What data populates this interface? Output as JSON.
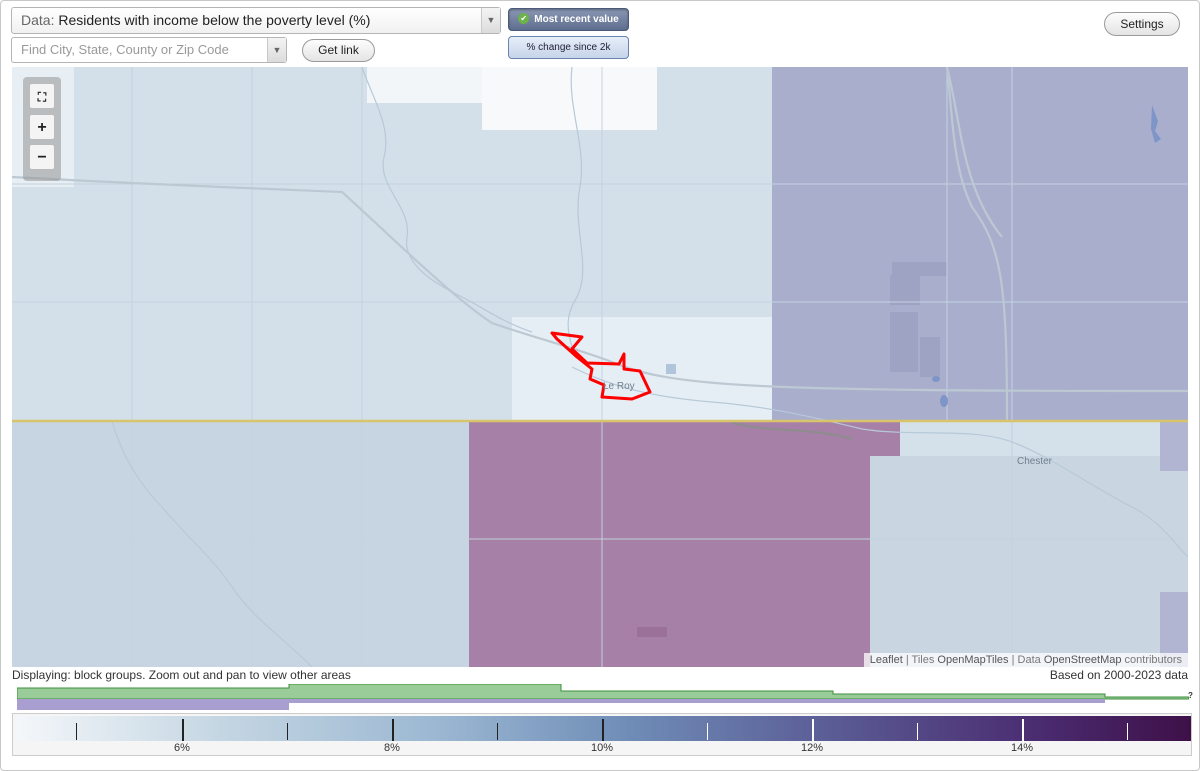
{
  "data_selector": {
    "prefix": "Data:",
    "value": "Residents with income below the poverty level (%)",
    "arrow": "▼"
  },
  "find": {
    "placeholder": "Find City, State, County or Zip Code",
    "arrow": "▼"
  },
  "buttons": {
    "get_link": "Get link",
    "settings": "Settings"
  },
  "toggles": {
    "most_recent": "Most recent value",
    "change_since": "% change since 2k",
    "check_icon": "✔"
  },
  "zoom": {
    "full_extent": "⛶",
    "zoom_in": "+",
    "zoom_out": "−"
  },
  "map": {
    "places": [
      "Le Roy",
      "Chester"
    ],
    "attribution": {
      "leaflet": "Leaflet",
      "sep1": " | Tiles ",
      "tiles": "OpenMapTiles",
      "sep2": " | Data ",
      "data": "OpenStreetMap",
      "suffix": " contributors"
    },
    "colors": {
      "very_light": "#edf2f6",
      "light_blue": "#d3e0e9",
      "mid_blue": "#c7d5e2",
      "violet": "#a9aecd",
      "magenta": "#a680a6",
      "boundary_line": "#d8c46a",
      "highlight": "#ff0000"
    }
  },
  "status": {
    "displaying": "Displaying: block groups. Zoom out and pan to view other areas",
    "based_on": "Based on 2000-2023 data"
  },
  "histogram": {
    "question": "?"
  },
  "legend": {
    "labels": [
      "6%",
      "8%",
      "10%",
      "12%",
      "14%"
    ]
  }
}
